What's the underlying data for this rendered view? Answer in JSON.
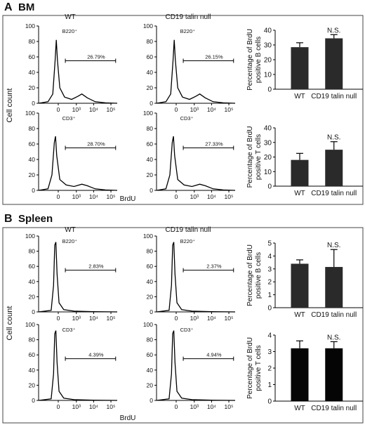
{
  "panel_a": {
    "letter": "A",
    "title": "BM",
    "ylabel": "Cell count",
    "xlabel": "BrdU",
    "wt_label": "WT",
    "null_label": "CD19 talin null"
  },
  "panel_b": {
    "letter": "B",
    "title": "Spleen",
    "ylabel": "Cell count",
    "xlabel": "BrdU",
    "wt_label": "WT",
    "null_label": "CD19 talin null"
  },
  "hist_axis": {
    "yticks": [
      "0",
      "20",
      "40",
      "60",
      "80",
      "100"
    ],
    "xticks": [
      "0",
      "10³",
      "10⁴",
      "10⁵"
    ]
  },
  "histograms": [
    {
      "cell": "B220⁺",
      "gate": "26.79%"
    },
    {
      "cell": "B220⁺",
      "gate": "26.15%"
    },
    {
      "cell": "CD3⁺",
      "gate": "28.70%"
    },
    {
      "cell": "CD3⁺",
      "gate": "27.33%"
    },
    {
      "cell": "B220⁺",
      "gate": "2.83%"
    },
    {
      "cell": "B220⁺",
      "gate": "2.37%"
    },
    {
      "cell": "CD3⁺",
      "gate": "4.39%"
    },
    {
      "cell": "CD3⁺",
      "gate": "4.94%"
    }
  ],
  "chart_data": [
    {
      "type": "bar",
      "panel": "A",
      "categories": [
        "WT",
        "CD19 talin null"
      ],
      "values": [
        28.5,
        34.5
      ],
      "errors": [
        3,
        2.5
      ],
      "ylabel": "Percentage of BrdU positive B cells",
      "ylim": [
        0,
        40
      ],
      "yticks": [
        0,
        10,
        20,
        30,
        40
      ],
      "annotation": "N.S.",
      "bar_color": "#2a2a2a"
    },
    {
      "type": "bar",
      "panel": "A",
      "categories": [
        "WT",
        "CD19 talin null"
      ],
      "values": [
        18,
        25
      ],
      "errors": [
        4.5,
        5.5
      ],
      "ylabel": "Percentage of BrdU positive T cells",
      "ylim": [
        0,
        40
      ],
      "yticks": [
        0,
        10,
        20,
        30,
        40
      ],
      "annotation": "N.S.",
      "bar_color": "#2a2a2a"
    },
    {
      "type": "bar",
      "panel": "B",
      "categories": [
        "WT",
        "CD19 talin null"
      ],
      "values": [
        3.4,
        3.15
      ],
      "errors": [
        0.3,
        1.35
      ],
      "ylabel": "Percentage of BrdU positive B cells",
      "ylim": [
        0,
        5
      ],
      "yticks": [
        0,
        1,
        2,
        3,
        4,
        5
      ],
      "annotation": "N.S.",
      "bar_color": "#2a2a2a"
    },
    {
      "type": "bar",
      "panel": "B",
      "categories": [
        "WT",
        "CD19 talin null"
      ],
      "values": [
        3.2,
        3.2
      ],
      "errors": [
        0.45,
        0.4
      ],
      "ylabel": "Percentage of BrdU positive T cells",
      "ylim": [
        0,
        4
      ],
      "yticks": [
        0,
        1,
        2,
        3,
        4
      ],
      "annotation": "N.S.",
      "bar_color": "#050505"
    }
  ]
}
